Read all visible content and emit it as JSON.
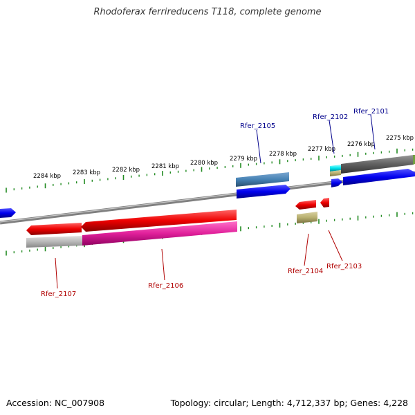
{
  "title": "Rhodoferax ferrireducens T118, complete genome",
  "footer": {
    "accession": "Accession: NC_007908",
    "info": "Topology: circular; Length: 4,712,337 bp; Genes: 4,228"
  },
  "scale": {
    "unit": "kbp",
    "ticks": [
      "2284 kbp",
      "2283 kbp",
      "2282 kbp",
      "2281 kbp",
      "2280 kbp",
      "2279 kbp",
      "2278 kbp",
      "2277 kbp",
      "2276 kbp",
      "2275 kbp"
    ]
  },
  "genes": [
    {
      "label": "Rfer_2101",
      "strand": "forward",
      "color": "#0000ee",
      "label_color": "#00008b"
    },
    {
      "label": "Rfer_2102",
      "strand": "forward",
      "color": "#0000ee",
      "label_color": "#00008b"
    },
    {
      "label": "Rfer_2103",
      "strand": "reverse",
      "color": "#ee0000",
      "label_color": "#b00000"
    },
    {
      "label": "Rfer_2104",
      "strand": "reverse",
      "color": "#ee0000",
      "label_color": "#b00000"
    },
    {
      "label": "Rfer_2105",
      "strand": "forward",
      "color": "#0000ee",
      "label_color": "#00008b"
    },
    {
      "label": "Rfer_2106",
      "strand": "reverse",
      "color": "#ee0000",
      "label_color": "#b00000"
    },
    {
      "label": "Rfer_2107",
      "strand": "reverse",
      "color": "#ee0000",
      "label_color": "#b00000"
    }
  ],
  "colors": {
    "backbone": "#808080",
    "tick": "#228b22",
    "forward_gene": "#0000ee",
    "reverse_gene": "#ee0000",
    "cog_steelblue": "#4682b4",
    "cog_gray": "#606060",
    "cog_cyan": "#00e5ee",
    "cog_olive": "#b8b070",
    "cog_magenta": "#e0209a",
    "cog_silver": "#b8b8b8"
  }
}
